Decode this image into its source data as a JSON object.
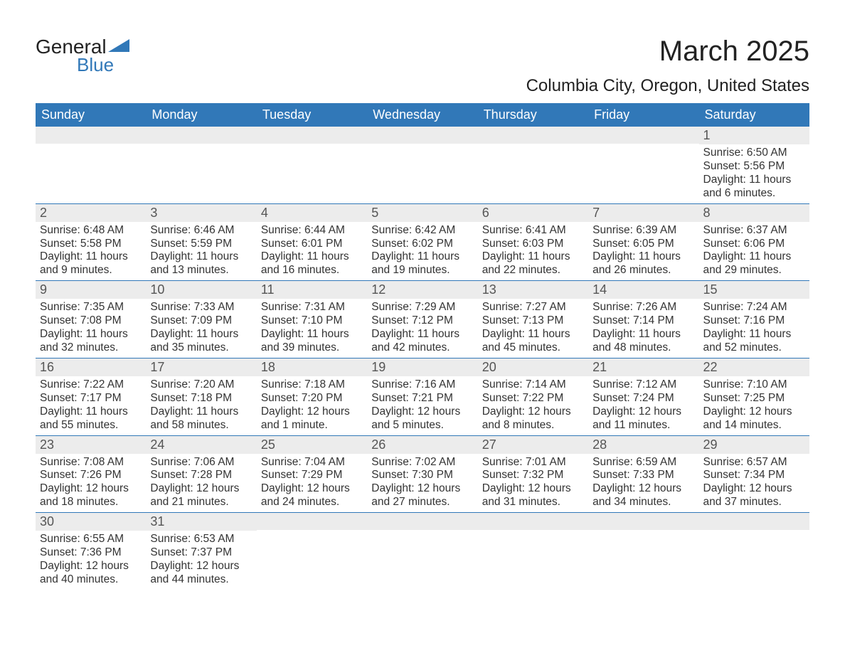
{
  "logo": {
    "word1": "General",
    "word2": "Blue",
    "shape_color": "#3178b8",
    "text_color": "#222222"
  },
  "title": "March 2025",
  "subtitle": "Columbia City, Oregon, United States",
  "colors": {
    "header_bg": "#3178b8",
    "header_text": "#ffffff",
    "daynum_bg": "#ececec",
    "daynum_text": "#555555",
    "body_text": "#333333",
    "week_border": "#3178b8",
    "page_bg": "#ffffff"
  },
  "font": {
    "family": "Arial",
    "title_size": 40,
    "subtitle_size": 24,
    "dow_size": 18,
    "daynum_size": 18,
    "body_size": 15.5
  },
  "days_of_week": [
    "Sunday",
    "Monday",
    "Tuesday",
    "Wednesday",
    "Thursday",
    "Friday",
    "Saturday"
  ],
  "calendar": {
    "leading_blanks": 6,
    "days": [
      {
        "n": 1,
        "sunrise": "6:50 AM",
        "sunset": "5:56 PM",
        "daylight": "11 hours and 6 minutes."
      },
      {
        "n": 2,
        "sunrise": "6:48 AM",
        "sunset": "5:58 PM",
        "daylight": "11 hours and 9 minutes."
      },
      {
        "n": 3,
        "sunrise": "6:46 AM",
        "sunset": "5:59 PM",
        "daylight": "11 hours and 13 minutes."
      },
      {
        "n": 4,
        "sunrise": "6:44 AM",
        "sunset": "6:01 PM",
        "daylight": "11 hours and 16 minutes."
      },
      {
        "n": 5,
        "sunrise": "6:42 AM",
        "sunset": "6:02 PM",
        "daylight": "11 hours and 19 minutes."
      },
      {
        "n": 6,
        "sunrise": "6:41 AM",
        "sunset": "6:03 PM",
        "daylight": "11 hours and 22 minutes."
      },
      {
        "n": 7,
        "sunrise": "6:39 AM",
        "sunset": "6:05 PM",
        "daylight": "11 hours and 26 minutes."
      },
      {
        "n": 8,
        "sunrise": "6:37 AM",
        "sunset": "6:06 PM",
        "daylight": "11 hours and 29 minutes."
      },
      {
        "n": 9,
        "sunrise": "7:35 AM",
        "sunset": "7:08 PM",
        "daylight": "11 hours and 32 minutes."
      },
      {
        "n": 10,
        "sunrise": "7:33 AM",
        "sunset": "7:09 PM",
        "daylight": "11 hours and 35 minutes."
      },
      {
        "n": 11,
        "sunrise": "7:31 AM",
        "sunset": "7:10 PM",
        "daylight": "11 hours and 39 minutes."
      },
      {
        "n": 12,
        "sunrise": "7:29 AM",
        "sunset": "7:12 PM",
        "daylight": "11 hours and 42 minutes."
      },
      {
        "n": 13,
        "sunrise": "7:27 AM",
        "sunset": "7:13 PM",
        "daylight": "11 hours and 45 minutes."
      },
      {
        "n": 14,
        "sunrise": "7:26 AM",
        "sunset": "7:14 PM",
        "daylight": "11 hours and 48 minutes."
      },
      {
        "n": 15,
        "sunrise": "7:24 AM",
        "sunset": "7:16 PM",
        "daylight": "11 hours and 52 minutes."
      },
      {
        "n": 16,
        "sunrise": "7:22 AM",
        "sunset": "7:17 PM",
        "daylight": "11 hours and 55 minutes."
      },
      {
        "n": 17,
        "sunrise": "7:20 AM",
        "sunset": "7:18 PM",
        "daylight": "11 hours and 58 minutes."
      },
      {
        "n": 18,
        "sunrise": "7:18 AM",
        "sunset": "7:20 PM",
        "daylight": "12 hours and 1 minute."
      },
      {
        "n": 19,
        "sunrise": "7:16 AM",
        "sunset": "7:21 PM",
        "daylight": "12 hours and 5 minutes."
      },
      {
        "n": 20,
        "sunrise": "7:14 AM",
        "sunset": "7:22 PM",
        "daylight": "12 hours and 8 minutes."
      },
      {
        "n": 21,
        "sunrise": "7:12 AM",
        "sunset": "7:24 PM",
        "daylight": "12 hours and 11 minutes."
      },
      {
        "n": 22,
        "sunrise": "7:10 AM",
        "sunset": "7:25 PM",
        "daylight": "12 hours and 14 minutes."
      },
      {
        "n": 23,
        "sunrise": "7:08 AM",
        "sunset": "7:26 PM",
        "daylight": "12 hours and 18 minutes."
      },
      {
        "n": 24,
        "sunrise": "7:06 AM",
        "sunset": "7:28 PM",
        "daylight": "12 hours and 21 minutes."
      },
      {
        "n": 25,
        "sunrise": "7:04 AM",
        "sunset": "7:29 PM",
        "daylight": "12 hours and 24 minutes."
      },
      {
        "n": 26,
        "sunrise": "7:02 AM",
        "sunset": "7:30 PM",
        "daylight": "12 hours and 27 minutes."
      },
      {
        "n": 27,
        "sunrise": "7:01 AM",
        "sunset": "7:32 PM",
        "daylight": "12 hours and 31 minutes."
      },
      {
        "n": 28,
        "sunrise": "6:59 AM",
        "sunset": "7:33 PM",
        "daylight": "12 hours and 34 minutes."
      },
      {
        "n": 29,
        "sunrise": "6:57 AM",
        "sunset": "7:34 PM",
        "daylight": "12 hours and 37 minutes."
      },
      {
        "n": 30,
        "sunrise": "6:55 AM",
        "sunset": "7:36 PM",
        "daylight": "12 hours and 40 minutes."
      },
      {
        "n": 31,
        "sunrise": "6:53 AM",
        "sunset": "7:37 PM",
        "daylight": "12 hours and 44 minutes."
      }
    ]
  },
  "labels": {
    "sunrise": "Sunrise:",
    "sunset": "Sunset:",
    "daylight": "Daylight:"
  }
}
